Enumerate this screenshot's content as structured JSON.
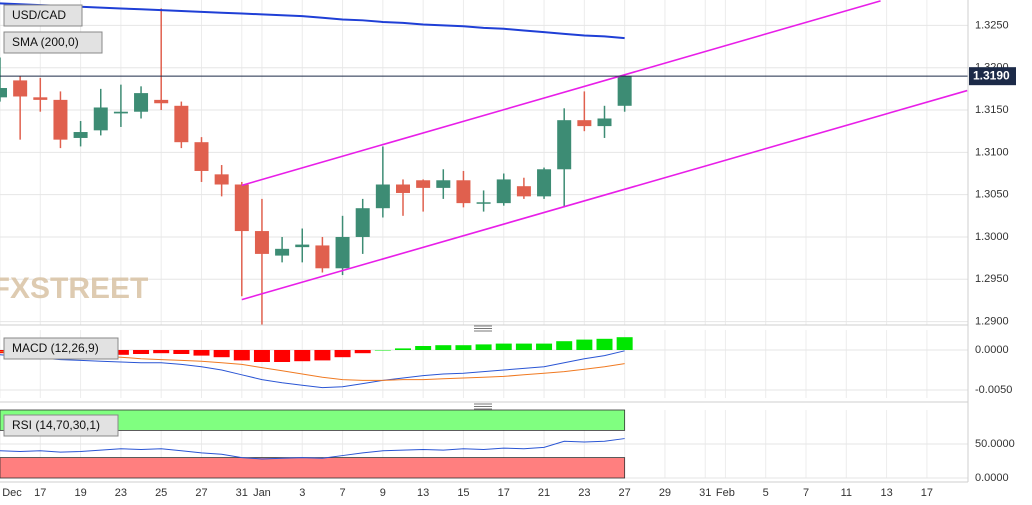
{
  "chart_data": [
    {
      "type": "candlestick",
      "title": "USD/CAD",
      "watermark": "FXSTREET",
      "categories": [
        "Dec",
        null,
        "17",
        null,
        "19",
        null,
        "23",
        null,
        "25",
        null,
        "27",
        null,
        "31",
        "Jan",
        null,
        "3",
        null,
        "7",
        null,
        "9",
        null,
        "13",
        null,
        "15",
        null,
        "17",
        null,
        "21",
        null,
        "23",
        null,
        "27",
        null,
        "29",
        null,
        "31",
        "Feb",
        null,
        "5",
        null,
        "7",
        null,
        "11",
        null,
        "13",
        null,
        "17",
        null
      ],
      "open": [
        1.3165,
        1.3185,
        1.3165,
        1.3162,
        1.3117,
        1.3126,
        1.3146,
        1.3148,
        1.3162,
        1.3155,
        1.3112,
        1.3074,
        1.3062,
        1.3007,
        1.2978,
        1.2988,
        1.299,
        1.2963,
        1.3,
        1.3034,
        1.3062,
        1.3067,
        1.3058,
        1.3067,
        1.304,
        1.304,
        1.306,
        1.3048,
        1.308,
        1.3138,
        1.3131,
        1.3155,
        null,
        null,
        null,
        null,
        null,
        null,
        null,
        null,
        null,
        null,
        null,
        null,
        null,
        null,
        null,
        null
      ],
      "high": [
        1.3212,
        1.319,
        1.3188,
        1.3172,
        1.3137,
        1.3175,
        1.318,
        1.3178,
        1.327,
        1.316,
        1.3118,
        1.3085,
        1.3065,
        1.3045,
        1.3,
        1.301,
        1.3,
        1.3025,
        1.3045,
        1.3107,
        1.3068,
        1.3068,
        1.308,
        1.3078,
        1.3055,
        1.3075,
        1.307,
        1.3082,
        1.3152,
        1.3172,
        1.3155,
        1.3192,
        null,
        null,
        null,
        null,
        null,
        null,
        null,
        null,
        null,
        null,
        null,
        null,
        null,
        null,
        null,
        null
      ],
      "low": [
        1.316,
        1.3115,
        1.3148,
        1.3105,
        1.3107,
        1.312,
        1.313,
        1.314,
        1.315,
        1.3105,
        1.3065,
        1.3048,
        1.293,
        1.2896,
        1.297,
        1.297,
        1.2958,
        1.2955,
        1.298,
        1.3023,
        1.3025,
        1.303,
        1.3045,
        1.3035,
        1.303,
        1.3037,
        1.3045,
        1.3045,
        1.3035,
        1.3125,
        1.3117,
        1.3148,
        null,
        null,
        null,
        null,
        null,
        null,
        null,
        null,
        null,
        null,
        null,
        null,
        null,
        null,
        null,
        null
      ],
      "close": [
        1.3176,
        1.3166,
        1.3162,
        1.3115,
        1.3124,
        1.3153,
        1.3148,
        1.317,
        1.3158,
        1.3112,
        1.3078,
        1.3062,
        1.3007,
        1.298,
        1.2986,
        1.2991,
        1.2963,
        1.3,
        1.3034,
        1.3062,
        1.3052,
        1.3058,
        1.3067,
        1.304,
        1.3041,
        1.3068,
        1.3048,
        1.308,
        1.3138,
        1.3131,
        1.314,
        1.319,
        null,
        null,
        null,
        null,
        null,
        null,
        null,
        null,
        null,
        null,
        null,
        null,
        null,
        null,
        null,
        null
      ],
      "up_color": "#3d8c74",
      "down_color": "#e0604e",
      "series": [
        {
          "name": "SMA (200,0)",
          "color": "#1f3fd6",
          "values": [
            1.3276,
            1.3275,
            1.3274,
            1.3273,
            1.3272,
            1.3271,
            1.327,
            1.3269,
            1.3268,
            1.3267,
            1.3266,
            1.3265,
            1.3264,
            1.3263,
            1.3262,
            1.3261,
            1.3259,
            1.3257,
            1.3256,
            1.3254,
            1.3253,
            1.3251,
            1.325,
            1.3249,
            1.3247,
            1.3246,
            1.3244,
            1.3242,
            1.324,
            1.3238,
            1.3237,
            1.3235,
            null,
            null,
            null,
            null,
            null,
            null,
            null,
            null,
            null,
            null,
            null,
            null,
            null,
            null,
            null,
            null
          ]
        }
      ],
      "trendlines": [
        {
          "color": "#e81ee8",
          "x": [
            12,
            43.7
          ],
          "values": [
            1.3061,
            1.3279
          ]
        },
        {
          "color": "#e81ee8",
          "x": [
            12,
            48
          ],
          "values": [
            1.2926,
            1.3173
          ]
        }
      ],
      "last_price": {
        "value": 1.319,
        "label": "1.3190"
      },
      "ylim": [
        1.2896,
        1.328
      ],
      "yticks": [
        {
          "value": 1.325,
          "label": "1.3250"
        },
        {
          "value": 1.32,
          "label": "1.3200"
        },
        {
          "value": 1.315,
          "label": "1.3150"
        },
        {
          "value": 1.31,
          "label": "1.3100"
        },
        {
          "value": 1.305,
          "label": "1.3050"
        },
        {
          "value": 1.3,
          "label": "1.3000"
        },
        {
          "value": 1.295,
          "label": "1.2950"
        },
        {
          "value": 1.29,
          "label": "1.2900"
        }
      ],
      "grid": true
    },
    {
      "type": "macd",
      "title": "MACD (12,26,9)",
      "histogram": [
        -0.0004,
        -0.0005,
        -0.0006,
        -0.0006,
        -0.0006,
        -0.0006,
        -0.0006,
        -0.0005,
        -0.0004,
        -0.0005,
        -0.0007,
        -0.0009,
        -0.0013,
        -0.0015,
        -0.0015,
        -0.0014,
        -0.0013,
        -0.0009,
        -0.0004,
        0.0,
        0.0002,
        0.0005,
        0.0006,
        0.0006,
        0.0007,
        0.0008,
        0.0008,
        0.0008,
        0.0011,
        0.0013,
        0.0014,
        0.0016,
        null,
        null,
        null,
        null,
        null,
        null,
        null,
        null,
        null,
        null,
        null,
        null,
        null,
        null,
        null,
        null
      ],
      "up_color": "#00e600",
      "down_color": "#ff0000",
      "macd_line": {
        "color": "#2a55d4",
        "values": [
          -0.0006,
          -0.0008,
          -0.001,
          -0.0012,
          -0.0013,
          -0.0014,
          -0.0015,
          -0.0016,
          -0.0016,
          -0.0018,
          -0.0021,
          -0.0025,
          -0.0031,
          -0.0037,
          -0.0041,
          -0.0044,
          -0.0047,
          -0.0046,
          -0.0042,
          -0.0038,
          -0.0035,
          -0.0032,
          -0.003,
          -0.0029,
          -0.0027,
          -0.0025,
          -0.0023,
          -0.0021,
          -0.0016,
          -0.0011,
          -0.0007,
          -0.0001,
          null,
          null,
          null,
          null,
          null,
          null,
          null,
          null,
          null,
          null,
          null,
          null,
          null,
          null,
          null,
          null
        ]
      },
      "signal_line": {
        "color": "#f07a22",
        "values": [
          -0.0002,
          -0.0003,
          -0.0004,
          -0.0006,
          -0.0007,
          -0.0008,
          -0.0009,
          -0.0011,
          -0.0012,
          -0.0013,
          -0.0014,
          -0.0016,
          -0.0018,
          -0.0022,
          -0.0026,
          -0.003,
          -0.0034,
          -0.0037,
          -0.0038,
          -0.0038,
          -0.0037,
          -0.0037,
          -0.0036,
          -0.0035,
          -0.0034,
          -0.0033,
          -0.0031,
          -0.0029,
          -0.0027,
          -0.0024,
          -0.0021,
          -0.0017,
          null,
          null,
          null,
          null,
          null,
          null,
          null,
          null,
          null,
          null,
          null,
          null,
          null,
          null,
          null,
          null
        ]
      },
      "ylim": [
        -0.006,
        0.0025
      ],
      "yticks": [
        {
          "value": 0,
          "label": "0.0000"
        },
        {
          "value": -0.005,
          "label": "-0.0050"
        }
      ],
      "grid": true
    },
    {
      "type": "rsi",
      "title": "RSI (14,70,30,1)",
      "color": "#2a55d4",
      "values": [
        40,
        39,
        40,
        38,
        39,
        41,
        43,
        42,
        43,
        40,
        37,
        35,
        30,
        28,
        29,
        30,
        29,
        33,
        37,
        40,
        41,
        42,
        41,
        43,
        42,
        44,
        43,
        45,
        54,
        53,
        54,
        58,
        null,
        null,
        null,
        null,
        null,
        null,
        null,
        null,
        null,
        null,
        null,
        null,
        null,
        null,
        null,
        null
      ],
      "bands": [
        {
          "range": [
            70,
            100
          ],
          "color": "#80ff80"
        },
        {
          "range": [
            0,
            30
          ],
          "color": "#ff7f7f"
        }
      ],
      "ylim": [
        0,
        100
      ],
      "yticks": [
        {
          "value": 50,
          "label": "50.0000"
        },
        {
          "value": 0,
          "label": "0.0000"
        }
      ],
      "grid": true
    }
  ]
}
